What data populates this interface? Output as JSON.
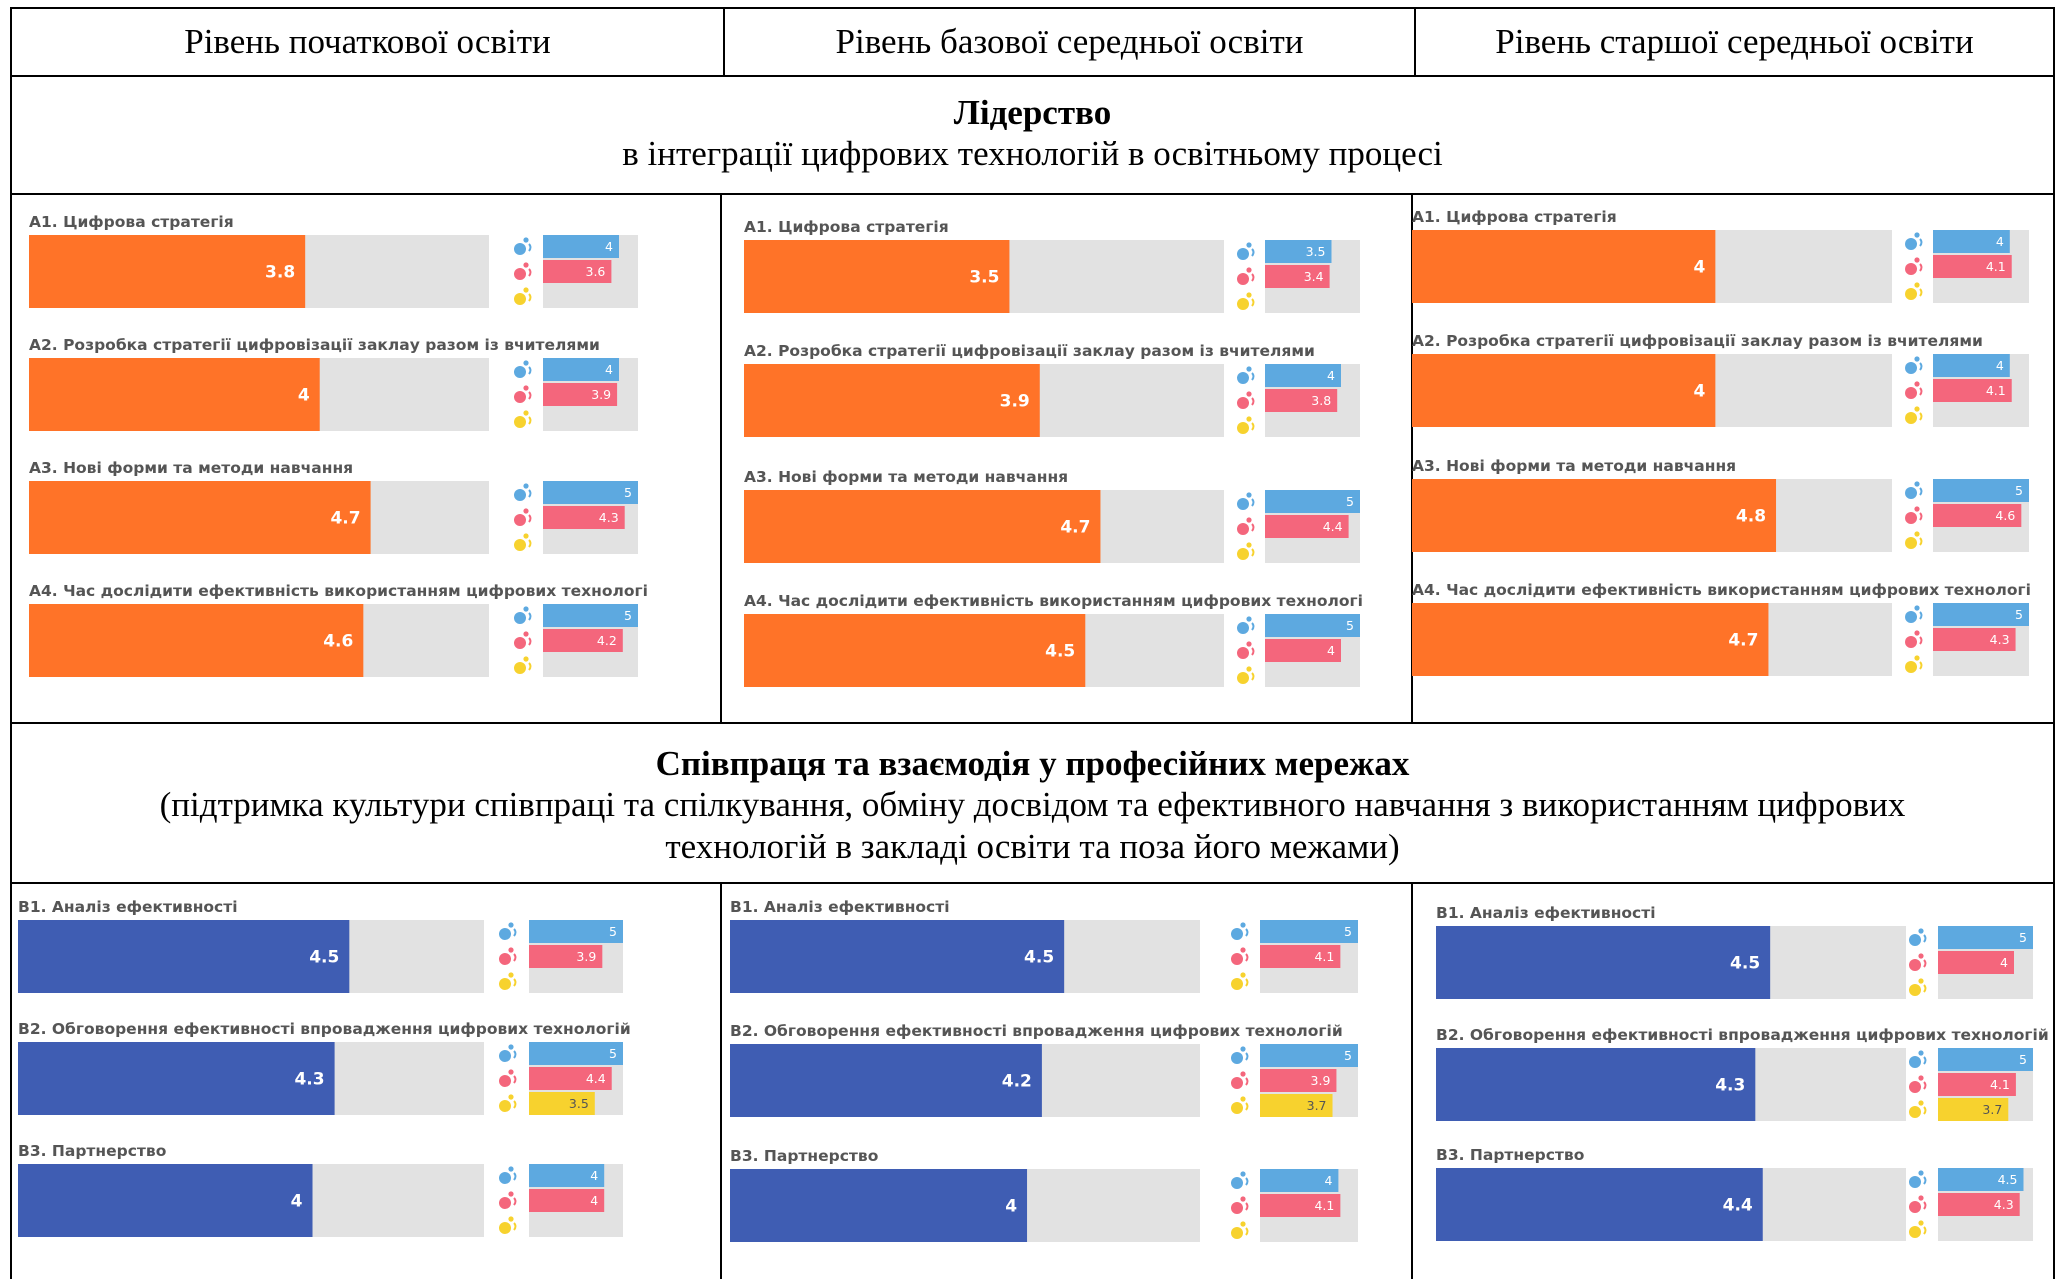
{
  "headers": {
    "primary": "Рівень  початкової освіти",
    "basic": "Рівень базової середньої освіти",
    "senior": "Рівень старшої середньої освіти"
  },
  "sectionA": {
    "title": "Лідерство",
    "subtitle": "в інтеграції цифрових технологій в освітньому  процесі"
  },
  "sectionB": {
    "title": "Співпраця та взаємодія у професійних мережах",
    "subtitle1": "(підтримка культури співпраці та спілкування, обміну досвідом та ефективного навчання з використанням цифрових",
    "subtitle2": "технологій в закладі освіти та поза його межами)"
  },
  "colors": {
    "orange": "#FF7328",
    "navy": "#3F5DB3",
    "track": "#E2E2E2",
    "blue": "#5DA9E0",
    "pink": "#F4667C",
    "yellow": "#F7D22E",
    "label": "#555555"
  },
  "chart_data": [
    {
      "type": "bar",
      "orientation": "horizontal",
      "level": "Рівень  початкової освіти",
      "section": "Лідерство",
      "xlim": [
        0,
        5
      ],
      "categories": [
        "A1. Цифрова стратегія",
        "A2. Розробка стратегії цифровізації заклау разом із вчителями",
        "A3. Нові форми та методи навчання",
        "A4. Час дослідити ефективність використанням цифрових технологі"
      ],
      "values": [
        3.8,
        4,
        4.7,
        4.6
      ],
      "series": [
        {
          "values": [
            4,
            4,
            5,
            5
          ]
        },
        {
          "values": [
            3.6,
            3.9,
            4.3,
            4.2
          ]
        },
        {
          "values": [
            null,
            null,
            null,
            null
          ]
        }
      ]
    },
    {
      "type": "bar",
      "orientation": "horizontal",
      "level": "Рівень базової середньої освіти",
      "section": "Лідерство",
      "xlim": [
        0,
        5
      ],
      "categories": [
        "A1. Цифрова стратегія",
        "A2. Розробка стратегії цифровізації заклау разом із вчителями",
        "A3. Нові форми та методи навчання",
        "A4. Час дослідити ефективність використанням цифрових технологі"
      ],
      "values": [
        3.5,
        3.9,
        4.7,
        4.5
      ],
      "series": [
        {
          "values": [
            3.5,
            4,
            5,
            5
          ]
        },
        {
          "values": [
            3.4,
            3.8,
            4.4,
            4
          ]
        },
        {
          "values": [
            null,
            null,
            null,
            null
          ]
        }
      ]
    },
    {
      "type": "bar",
      "orientation": "horizontal",
      "level": "Рівень старшої середньої освіти",
      "section": "Лідерство",
      "xlim": [
        0,
        5
      ],
      "categories": [
        "A1. Цифрова стратегія",
        "A2. Розробка стратегії цифровізації заклау разом із вчителями",
        "A3. Нові форми та методи навчання",
        "A4. Час дослідити ефективність використанням цифрових технологі"
      ],
      "values": [
        4,
        4,
        4.8,
        4.7
      ],
      "series": [
        {
          "values": [
            4,
            4,
            5,
            5
          ]
        },
        {
          "values": [
            4.1,
            4.1,
            4.6,
            4.3
          ]
        },
        {
          "values": [
            null,
            null,
            null,
            null
          ]
        }
      ]
    },
    {
      "type": "bar",
      "orientation": "horizontal",
      "level": "Рівень  початкової освіти",
      "section": "Співпраця та взаємодія у професійних мережах",
      "xlim": [
        0,
        5
      ],
      "categories": [
        "B1. Аналіз ефективності",
        "B2. Обговорення ефективності впровадження цифрових технологій",
        "B3. Партнерство"
      ],
      "values": [
        4.5,
        4.3,
        4
      ],
      "series": [
        {
          "values": [
            5,
            5,
            4
          ]
        },
        {
          "values": [
            3.9,
            4.4,
            4
          ]
        },
        {
          "values": [
            null,
            3.5,
            null
          ]
        }
      ]
    },
    {
      "type": "bar",
      "orientation": "horizontal",
      "level": "Рівень базової середньої освіти",
      "section": "Співпраця та взаємодія у професійних мережах",
      "xlim": [
        0,
        5
      ],
      "categories": [
        "B1. Аналіз ефективності",
        "B2. Обговорення ефективності впровадження цифрових технологій",
        "B3. Партнерство"
      ],
      "values": [
        4.5,
        4.2,
        4
      ],
      "series": [
        {
          "values": [
            5,
            5,
            4
          ]
        },
        {
          "values": [
            4.1,
            3.9,
            4.1
          ]
        },
        {
          "values": [
            null,
            3.7,
            null
          ]
        }
      ]
    },
    {
      "type": "bar",
      "orientation": "horizontal",
      "level": "Рівень старшої середньої освіти",
      "section": "Співпраця та взаємодія у професійних мережах",
      "xlim": [
        0,
        5
      ],
      "categories": [
        "B1. Аналіз ефективності",
        "B2. Обговорення ефективності впровадження цифрових технологій",
        "B3. Партнерство"
      ],
      "values": [
        4.5,
        4.3,
        4.4
      ],
      "series": [
        {
          "values": [
            5,
            5,
            4.5
          ]
        },
        {
          "values": [
            4,
            4.1,
            4.3
          ]
        },
        {
          "values": [
            null,
            3.7,
            null
          ]
        }
      ]
    }
  ]
}
